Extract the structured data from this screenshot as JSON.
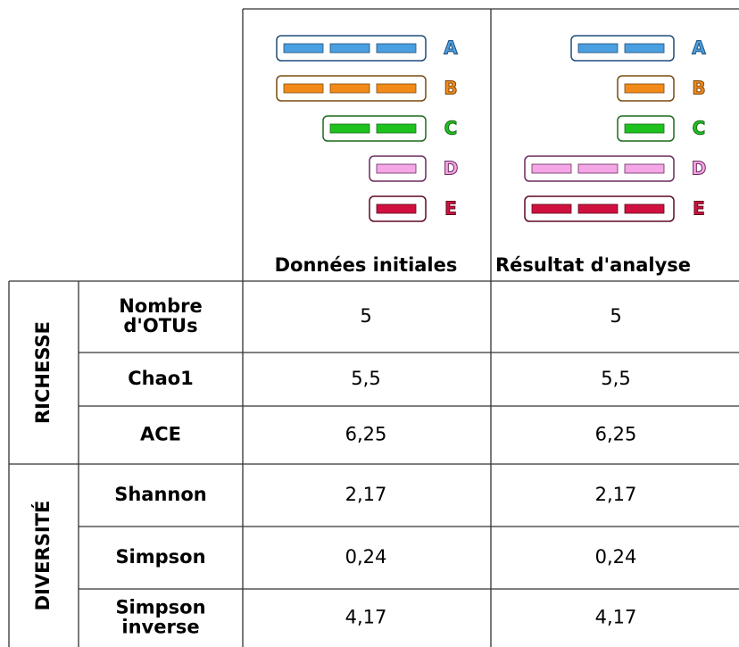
{
  "columns": [
    "Données initiales",
    "Résultat d'analyse"
  ],
  "otus": [
    {
      "label": "A",
      "color": "#4a9fe0",
      "stroke": "#1f4e79",
      "segments": [
        3,
        2
      ]
    },
    {
      "label": "B",
      "color": "#f28a1a",
      "stroke": "#7a4a10",
      "segments": [
        3,
        1
      ]
    },
    {
      "label": "C",
      "color": "#1ec21e",
      "stroke": "#1d6b1d",
      "segments": [
        2,
        1
      ]
    },
    {
      "label": "D",
      "color": "#f4a6e6",
      "stroke": "#6b2a5e",
      "segments": [
        1,
        3
      ]
    },
    {
      "label": "E",
      "color": "#d0103e",
      "stroke": "#5e0a20",
      "segments": [
        1,
        3
      ]
    }
  ],
  "groups": [
    {
      "name": "RICHESSE",
      "rows": [
        {
          "metric": [
            "Nombre",
            "d'OTUs"
          ],
          "values": [
            "5",
            "5"
          ]
        },
        {
          "metric": [
            "Chao1"
          ],
          "values": [
            "5,5",
            "5,5"
          ]
        },
        {
          "metric": [
            "ACE"
          ],
          "values": [
            "6,25",
            "6,25"
          ]
        }
      ]
    },
    {
      "name": "DIVERSITÉ",
      "rows": [
        {
          "metric": [
            "Shannon"
          ],
          "values": [
            "2,17",
            "2,17"
          ]
        },
        {
          "metric": [
            "Simpson"
          ],
          "values": [
            "0,24",
            "0,24"
          ]
        },
        {
          "metric": [
            "Simpson",
            "inverse"
          ],
          "values": [
            "4,17",
            "4,17"
          ]
        }
      ]
    }
  ]
}
